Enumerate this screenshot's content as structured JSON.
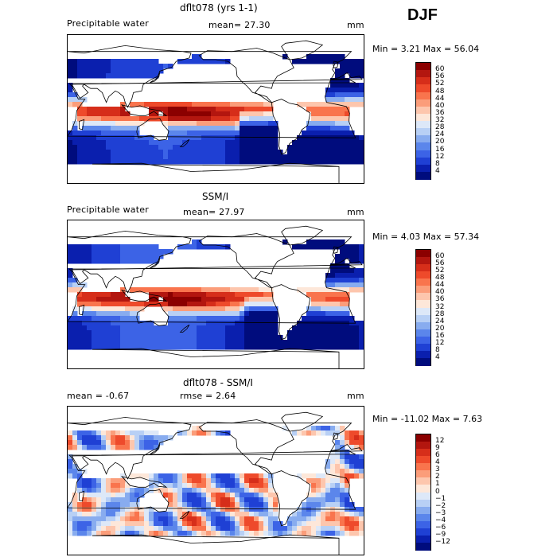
{
  "season": "DJF",
  "panels": [
    {
      "title": "dflt078 (yrs 1-1)",
      "left": "Precipitable water",
      "center": "mean=   27.30",
      "right": "mm",
      "stats": "Min =    3.21  Max =   56.04",
      "colorbar": {
        "labels": [
          "60",
          "56",
          "52",
          "48",
          "44",
          "40",
          "36",
          "32",
          "28",
          "24",
          "20",
          "16",
          "12",
          "8",
          "4"
        ],
        "colors": [
          "#8b0000",
          "#b3160f",
          "#d62e1a",
          "#ee4a2b",
          "#f9744d",
          "#fb9d7a",
          "#fdc6ad",
          "#fde7d9",
          "#dde8f8",
          "#b8d0f5",
          "#88acef",
          "#5b86eb",
          "#3c63e6",
          "#1f40d4",
          "#0a1fae",
          "#000c7d"
        ]
      },
      "map": {
        "variant": "model"
      }
    },
    {
      "title": "SSM/I",
      "left": "Precipitable water",
      "center": "mean=   27.97",
      "right": "mm",
      "stats": "Min =    4.03  Max =   57.34",
      "colorbar": {
        "labels": [
          "60",
          "56",
          "52",
          "48",
          "44",
          "40",
          "36",
          "32",
          "28",
          "24",
          "20",
          "16",
          "12",
          "8",
          "4"
        ],
        "colors": [
          "#8b0000",
          "#b3160f",
          "#d62e1a",
          "#ee4a2b",
          "#f9744d",
          "#fb9d7a",
          "#fdc6ad",
          "#fde7d9",
          "#dde8f8",
          "#b8d0f5",
          "#88acef",
          "#5b86eb",
          "#3c63e6",
          "#1f40d4",
          "#0a1fae",
          "#000c7d"
        ]
      },
      "map": {
        "variant": "obs"
      }
    },
    {
      "title": "dflt078 - SSM/I",
      "left": "mean =   -0.67",
      "center": "rmse =    2.64",
      "right": "mm",
      "stats": "Min =  -11.02  Max =    7.63",
      "colorbar": {
        "labels": [
          "12",
          "9",
          "6",
          "4",
          "3",
          "2",
          "1",
          "0",
          "−1",
          "−2",
          "−3",
          "−4",
          "−6",
          "−9",
          "−12"
        ],
        "colors": [
          "#8b0000",
          "#b3160f",
          "#d62e1a",
          "#ee4a2b",
          "#f9744d",
          "#fb9d7a",
          "#fdc6ad",
          "#fde7d9",
          "#dde8f8",
          "#b8d0f5",
          "#88acef",
          "#5b86eb",
          "#3c63e6",
          "#1f40d4",
          "#0a1fae",
          "#000c7d"
        ]
      },
      "map": {
        "variant": "diff"
      }
    }
  ]
}
